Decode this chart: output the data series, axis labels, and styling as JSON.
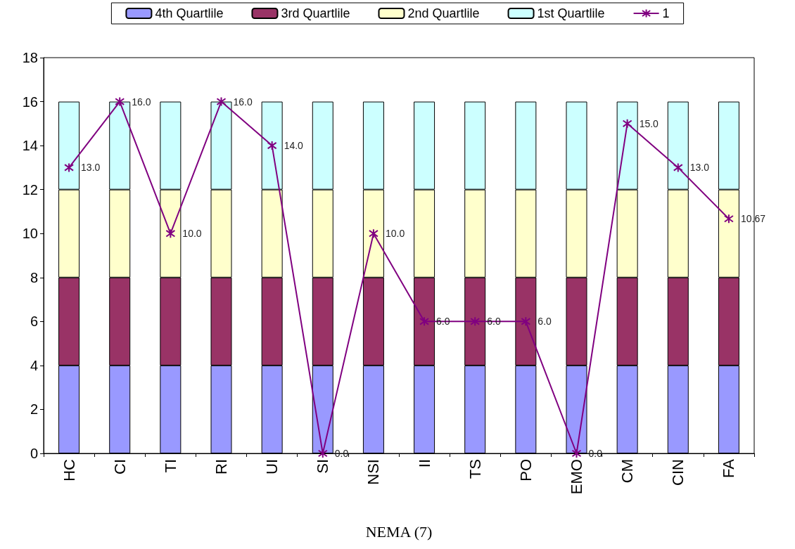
{
  "chart_data": {
    "type": "bar",
    "stacked": true,
    "xlabel": "NEMA (7)",
    "categories": [
      "HC",
      "CI",
      "TI",
      "RI",
      "UI",
      "SI",
      "NSI",
      "II",
      "TS",
      "PO",
      "EMO",
      "CM",
      "CIN",
      "FA"
    ],
    "series": [
      {
        "name": "4th Quartlile",
        "color": "#9999ff",
        "values": [
          4,
          4,
          4,
          4,
          4,
          4,
          4,
          4,
          4,
          4,
          4,
          4,
          4,
          4
        ]
      },
      {
        "name": "3rd Quartlile",
        "color": "#993366",
        "values": [
          4,
          4,
          4,
          4,
          4,
          4,
          4,
          4,
          4,
          4,
          4,
          4,
          4,
          4
        ]
      },
      {
        "name": "2nd Quartlile",
        "color": "#ffffcc",
        "values": [
          4,
          4,
          4,
          4,
          4,
          4,
          4,
          4,
          4,
          4,
          4,
          4,
          4,
          4
        ]
      },
      {
        "name": "1st Quartlile",
        "color": "#ccffff",
        "values": [
          4,
          4,
          4,
          4,
          4,
          4,
          4,
          4,
          4,
          4,
          4,
          4,
          4,
          4
        ]
      },
      {
        "name": "1",
        "type": "line",
        "color": "#800080",
        "marker": "cross",
        "values": [
          13,
          16,
          10,
          16,
          14,
          0,
          10,
          6,
          6,
          6,
          0,
          15,
          13,
          10.67
        ],
        "value_labels": [
          "13.0",
          "16.0",
          "10.0",
          "16.0",
          "14.0",
          "0.0",
          "10.0",
          "6.0",
          "6.0",
          "6.0",
          "0.0",
          "15.0",
          "13.0",
          "10.67"
        ]
      }
    ],
    "ylim": [
      0,
      18
    ],
    "yticks": [
      0,
      2,
      4,
      6,
      8,
      10,
      12,
      14,
      16,
      18
    ],
    "grid": false,
    "legend": "top"
  }
}
